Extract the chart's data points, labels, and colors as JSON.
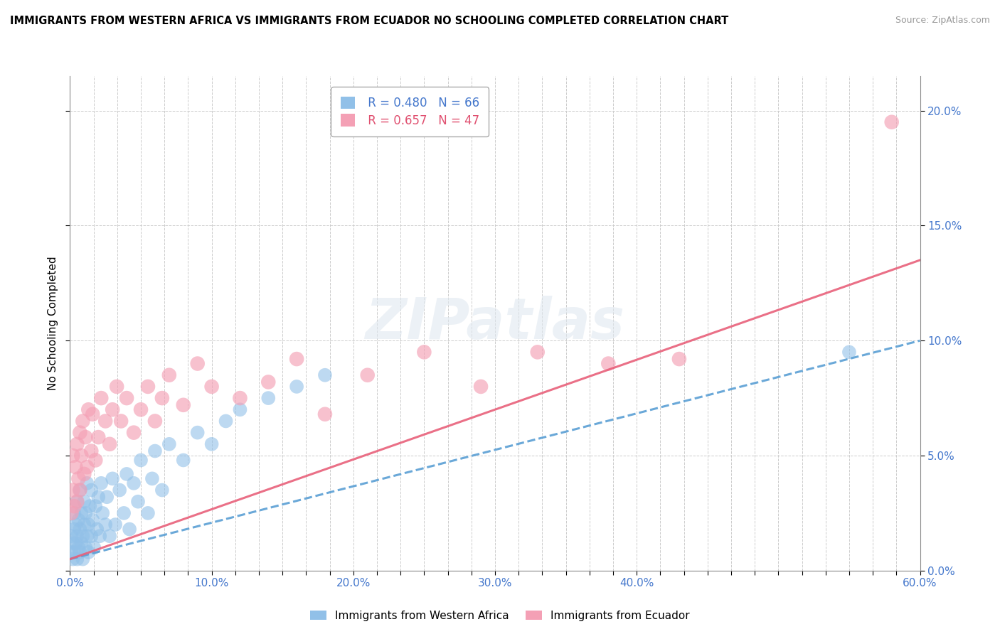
{
  "title": "IMMIGRANTS FROM WESTERN AFRICA VS IMMIGRANTS FROM ECUADOR NO SCHOOLING COMPLETED CORRELATION CHART",
  "source": "Source: ZipAtlas.com",
  "ylabel": "No Schooling Completed",
  "x_min": 0.0,
  "x_max": 0.6,
  "y_min": 0.0,
  "y_max": 0.215,
  "blue_R": 0.48,
  "blue_N": 66,
  "pink_R": 0.657,
  "pink_N": 47,
  "blue_color": "#91c0e8",
  "pink_color": "#f4a0b5",
  "blue_line_color": "#5a9fd4",
  "pink_line_color": "#e8607a",
  "blue_label": "Immigrants from Western Africa",
  "pink_label": "Immigrants from Ecuador",
  "watermark": "ZIPatlas",
  "blue_scatter_x": [
    0.001,
    0.001,
    0.002,
    0.002,
    0.003,
    0.003,
    0.003,
    0.004,
    0.004,
    0.005,
    0.005,
    0.005,
    0.006,
    0.006,
    0.007,
    0.007,
    0.007,
    0.008,
    0.008,
    0.009,
    0.009,
    0.01,
    0.01,
    0.011,
    0.011,
    0.012,
    0.012,
    0.013,
    0.013,
    0.014,
    0.015,
    0.015,
    0.016,
    0.017,
    0.018,
    0.019,
    0.02,
    0.021,
    0.022,
    0.023,
    0.025,
    0.026,
    0.028,
    0.03,
    0.032,
    0.035,
    0.038,
    0.04,
    0.042,
    0.045,
    0.048,
    0.05,
    0.055,
    0.058,
    0.06,
    0.065,
    0.07,
    0.08,
    0.09,
    0.1,
    0.11,
    0.12,
    0.14,
    0.16,
    0.18,
    0.55
  ],
  "blue_scatter_y": [
    0.008,
    0.015,
    0.005,
    0.012,
    0.018,
    0.008,
    0.025,
    0.012,
    0.02,
    0.005,
    0.015,
    0.03,
    0.01,
    0.022,
    0.008,
    0.018,
    0.035,
    0.012,
    0.025,
    0.015,
    0.005,
    0.02,
    0.03,
    0.01,
    0.025,
    0.015,
    0.038,
    0.02,
    0.008,
    0.028,
    0.015,
    0.035,
    0.022,
    0.01,
    0.028,
    0.018,
    0.032,
    0.015,
    0.038,
    0.025,
    0.02,
    0.032,
    0.015,
    0.04,
    0.02,
    0.035,
    0.025,
    0.042,
    0.018,
    0.038,
    0.03,
    0.048,
    0.025,
    0.04,
    0.052,
    0.035,
    0.055,
    0.048,
    0.06,
    0.055,
    0.065,
    0.07,
    0.075,
    0.08,
    0.085,
    0.095
  ],
  "pink_scatter_x": [
    0.001,
    0.002,
    0.002,
    0.003,
    0.004,
    0.005,
    0.005,
    0.006,
    0.007,
    0.007,
    0.008,
    0.009,
    0.01,
    0.011,
    0.012,
    0.013,
    0.015,
    0.016,
    0.018,
    0.02,
    0.022,
    0.025,
    0.028,
    0.03,
    0.033,
    0.036,
    0.04,
    0.045,
    0.05,
    0.055,
    0.06,
    0.065,
    0.07,
    0.08,
    0.09,
    0.1,
    0.12,
    0.14,
    0.16,
    0.18,
    0.21,
    0.25,
    0.29,
    0.33,
    0.38,
    0.43,
    0.58
  ],
  "pink_scatter_y": [
    0.025,
    0.035,
    0.05,
    0.028,
    0.045,
    0.03,
    0.055,
    0.04,
    0.06,
    0.035,
    0.05,
    0.065,
    0.042,
    0.058,
    0.045,
    0.07,
    0.052,
    0.068,
    0.048,
    0.058,
    0.075,
    0.065,
    0.055,
    0.07,
    0.08,
    0.065,
    0.075,
    0.06,
    0.07,
    0.08,
    0.065,
    0.075,
    0.085,
    0.072,
    0.09,
    0.08,
    0.075,
    0.082,
    0.092,
    0.068,
    0.085,
    0.095,
    0.08,
    0.095,
    0.09,
    0.092,
    0.195
  ],
  "blue_trend_x": [
    0.0,
    0.6
  ],
  "blue_trend_y": [
    0.005,
    0.1
  ],
  "pink_trend_x": [
    0.0,
    0.6
  ],
  "pink_trend_y": [
    0.005,
    0.135
  ],
  "right_ytick_values": [
    0.0,
    0.05,
    0.1,
    0.15,
    0.2
  ],
  "right_ytick_labels": [
    "0.0%",
    "5.0%",
    "10.0%",
    "15.0%",
    "20.0%"
  ]
}
